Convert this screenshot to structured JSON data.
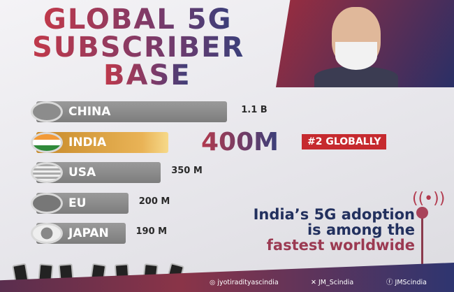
{
  "title_lines": [
    "GLOBAL 5G",
    "SUBSCRIBER",
    "BASE"
  ],
  "chart_data": {
    "type": "bar",
    "orientation": "horizontal",
    "title": "GLOBAL 5G SUBSCRIBER BASE",
    "categories": [
      "CHINA",
      "INDIA",
      "USA",
      "EU",
      "JAPAN"
    ],
    "values": [
      1100,
      400,
      350,
      200,
      190
    ],
    "value_labels": [
      "1.1 B",
      "400M",
      "350 M",
      "200 M",
      "190 M"
    ],
    "unit": "millions of subscribers",
    "highlight": "INDIA",
    "colors": {
      "bar": "#8a8a8a",
      "highlight": "#d99a3a"
    }
  },
  "highlight_badge": "#2 GLOBALLY",
  "tagline": [
    "India’s 5G adoption",
    "is among the",
    "fastest worldwide"
  ],
  "social": {
    "instagram": "jyotiradityascindia",
    "x": "JM_Scindia",
    "facebook": "JMScindia"
  }
}
